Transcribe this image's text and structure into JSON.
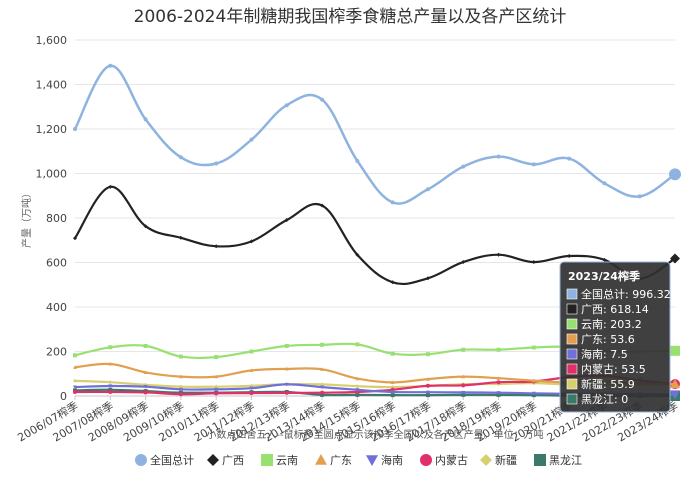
{
  "chart_data": {
    "type": "line",
    "title": "2006-2024年制糖期我国榨季食糖总产量以及各产区统计",
    "ylabel": "产量（万吨）",
    "note": "小数点四舍五入--鼠标移至圆点显示该榨季全国以及各产区产量。单位：万吨",
    "ylim": [
      0,
      1600
    ],
    "yticks": [
      0,
      200,
      400,
      600,
      800,
      1000,
      1200,
      1400,
      1600
    ],
    "ytick_labels": [
      "0",
      "200",
      "400",
      "600",
      "800",
      "1,000",
      "1,200",
      "1,400",
      "1,600"
    ],
    "grid": true,
    "legend_position": "bottom",
    "categories": [
      "2006/07榨季",
      "2007/08榨季",
      "2008/09榨季",
      "2009/10榨季",
      "2010/11榨季",
      "2011/12榨季",
      "2012/13榨季",
      "2013/14榨季",
      "2014/15榨季",
      "2015/16榨季",
      "2016/17榨季",
      "2017/18榨季",
      "2018/19榨季",
      "2019/20榨季",
      "2020/21榨季",
      "2021/22榨季",
      "2022/23榨季",
      "2023/24榨季"
    ],
    "series": [
      {
        "name": "全国总计",
        "color": "#8fb3e0",
        "marker": "circle",
        "values": [
          1200,
          1484,
          1243,
          1073,
          1045,
          1152,
          1307,
          1332,
          1056,
          870,
          929,
          1031,
          1076,
          1041,
          1067,
          956,
          897,
          996.32
        ]
      },
      {
        "name": "广西",
        "color": "#222222",
        "marker": "diamond",
        "values": [
          709,
          940,
          763,
          711,
          673,
          695,
          791,
          856,
          634,
          511,
          529,
          602,
          635,
          602,
          629,
          612,
          527,
          618.14
        ]
      },
      {
        "name": "云南",
        "color": "#99e073",
        "marker": "square",
        "values": [
          183,
          219,
          225,
          177,
          175,
          200,
          225,
          230,
          232,
          190,
          188,
          208,
          208,
          218,
          221,
          201,
          200,
          203.2
        ]
      },
      {
        "name": "广东",
        "color": "#e0a050",
        "marker": "triangle",
        "values": [
          129,
          144,
          106,
          87,
          87,
          115,
          122,
          120,
          78,
          61,
          76,
          87,
          80,
          69,
          60,
          62,
          57,
          53.6
        ]
      },
      {
        "name": "海南",
        "color": "#7070d8",
        "marker": "triangle-down",
        "values": [
          40,
          45,
          42,
          30,
          30,
          35,
          52,
          40,
          28,
          18,
          17,
          16,
          15,
          12,
          10,
          9,
          8,
          7.5
        ]
      },
      {
        "name": "内蒙古",
        "color": "#e0306a",
        "marker": "circle",
        "values": [
          18,
          18,
          16,
          8,
          12,
          13,
          14,
          15,
          18,
          28,
          46,
          48,
          62,
          65,
          85,
          91,
          70,
          53.5
        ]
      },
      {
        "name": "新疆",
        "color": "#d8d070",
        "marker": "diamond",
        "values": [
          68,
          62,
          50,
          42,
          42,
          46,
          53,
          52,
          44,
          40,
          45,
          53,
          54,
          58,
          52,
          57,
          50,
          55.9
        ]
      },
      {
        "name": "黑龙江",
        "color": "#3a7a6a",
        "marker": "square",
        "values": [
          25,
          28,
          22,
          15,
          15,
          17,
          18,
          5,
          5,
          4,
          4,
          5,
          5,
          4,
          1,
          0,
          0,
          0
        ]
      }
    ]
  },
  "tooltip": {
    "title": "2023/24榨季",
    "rows": [
      "全国总计: 996.32",
      "广西: 618.14",
      "云南: 203.2",
      "广东: 53.6",
      "海南: 7.5",
      "内蒙古: 53.5",
      "新疆: 55.9",
      "黑龙江: 0"
    ]
  }
}
